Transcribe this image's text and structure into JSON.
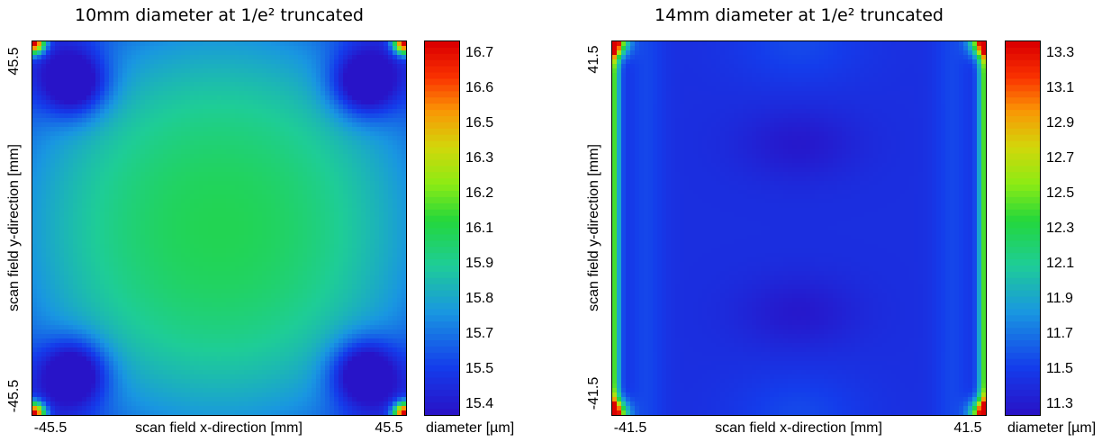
{
  "chart_data": [
    {
      "type": "heatmap",
      "title": "10mm diameter at 1/e² truncated",
      "xlabel": "scan field x-direction [mm]",
      "ylabel": "scan field y-direction [mm]",
      "xlim": [
        -45.5,
        45.5
      ],
      "ylim": [
        -45.5,
        45.5
      ],
      "x_tick_labels": [
        "-45.5",
        "45.5"
      ],
      "y_tick_labels": [
        "-45.5",
        "45.5"
      ],
      "colorbar_label": "diameter [µm]",
      "colorbar_ticks": [
        "16.7",
        "16.6",
        "16.5",
        "16.3",
        "16.2",
        "16.1",
        "15.9",
        "15.8",
        "15.7",
        "15.5",
        "15.4"
      ],
      "value_range": [
        15.35,
        16.78
      ],
      "pattern": "center ~16.05 decreasing toward mid-edges ~15.75; dark-blue lobes ~15.4 near each corner; sharp red peaks (~16.75) at the extreme corners"
    },
    {
      "type": "heatmap",
      "title": "14mm diameter at 1/e² truncated",
      "xlabel": "scan field x-direction [mm]",
      "ylabel": "scan field y-direction [mm]",
      "xlim": [
        -41.5,
        41.5
      ],
      "ylim": [
        -41.5,
        41.5
      ],
      "x_tick_labels": [
        "-41.5",
        "41.5"
      ],
      "y_tick_labels": [
        "-41.5",
        "41.5"
      ],
      "colorbar_label": "diameter [µm]",
      "colorbar_ticks": [
        "13.3",
        "13.1",
        "12.9",
        "12.7",
        "12.5",
        "12.3",
        "12.1",
        "11.9",
        "11.7",
        "11.5",
        "11.3"
      ],
      "value_range": [
        11.25,
        13.38
      ],
      "pattern": "mostly blue ~11.4; darker minima ~11.3 at (0, ±20); light-blue band near top/bottom centre ~11.55; rising to green/red along left and right edges and at corners (~13.3)"
    }
  ]
}
